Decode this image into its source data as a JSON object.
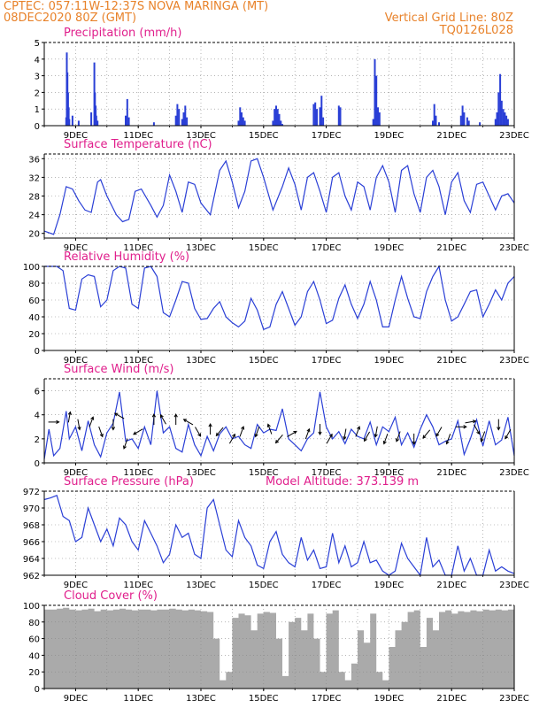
{
  "header": {
    "line1": "CPTEC:   057:11W-12:37S   NOVA MARINGA (MT)",
    "line2_left": "08DEC2020 80Z (GMT)",
    "line2_right": "Vertical Grid Line: 80Z",
    "line3_right": "TQ0126L028"
  },
  "colors": {
    "header": "#e8822a",
    "title": "#e01f8c",
    "line": "#2a3fd6",
    "cloud": "#aaaaaa"
  },
  "chart_data": [
    {
      "type": "bar",
      "title": "Precipitation (mm/h)",
      "ylim": [
        0,
        5
      ],
      "yticks": [
        0,
        1,
        2,
        3,
        4,
        5
      ],
      "xticklabels": [
        "9DEC",
        "11DEC",
        "13DEC",
        "15DEC",
        "17DEC",
        "19DEC",
        "21DEC",
        "23DEC"
      ],
      "xlim_days": [
        8.0,
        23.0
      ],
      "x_days": [
        8.7,
        8.72,
        8.74,
        8.76,
        8.78,
        8.8,
        8.9,
        9.1,
        9.5,
        9.6,
        9.62,
        9.64,
        9.66,
        9.7,
        10.6,
        10.65,
        10.7,
        11.5,
        12.2,
        12.25,
        12.3,
        12.4,
        12.45,
        12.5,
        12.55,
        14.2,
        14.25,
        14.3,
        14.35,
        14.4,
        15.3,
        15.35,
        15.4,
        15.45,
        15.5,
        15.55,
        15.6,
        16.6,
        16.65,
        16.7,
        16.8,
        16.85,
        16.9,
        17.4,
        17.45,
        18.5,
        18.55,
        18.6,
        18.65,
        18.7,
        20.4,
        20.45,
        20.5,
        20.6,
        21.3,
        21.35,
        21.4,
        21.5,
        21.55,
        21.9,
        22.4,
        22.45,
        22.5,
        22.55,
        22.6,
        22.65,
        22.7,
        22.75,
        22.8
      ],
      "values": [
        0.5,
        4.4,
        3.2,
        2.0,
        1.1,
        0.4,
        0.6,
        0.3,
        0.8,
        3.8,
        2.0,
        1.2,
        0.6,
        0.3,
        0.6,
        1.6,
        0.5,
        0.2,
        0.6,
        1.3,
        1.0,
        0.4,
        0.8,
        1.2,
        0.5,
        0.3,
        1.1,
        0.8,
        0.5,
        0.3,
        0.3,
        1.0,
        1.2,
        1.0,
        0.7,
        0.3,
        0.1,
        1.3,
        1.4,
        1.0,
        1.1,
        1.8,
        0.5,
        1.2,
        1.1,
        0.4,
        4.0,
        3.0,
        1.1,
        0.8,
        0.3,
        1.3,
        0.6,
        0.2,
        0.6,
        1.2,
        0.8,
        0.5,
        0.3,
        0.2,
        0.4,
        0.8,
        2.0,
        3.1,
        1.5,
        1.0,
        0.8,
        0.6,
        0.4
      ]
    },
    {
      "type": "line",
      "title": "Surface Temperature (nC)",
      "ylim": [
        19,
        37
      ],
      "yticks": [
        20,
        24,
        28,
        32,
        36
      ],
      "xticklabels": [
        "9DEC",
        "11DEC",
        "13DEC",
        "15DEC",
        "17DEC",
        "19DEC",
        "21DEC",
        "23DEC"
      ],
      "xlim_days": [
        8.0,
        23.0
      ],
      "x_days": [
        8.0,
        8.3,
        8.5,
        8.7,
        8.9,
        9.1,
        9.3,
        9.5,
        9.7,
        9.8,
        10.0,
        10.3,
        10.5,
        10.7,
        10.9,
        11.1,
        11.4,
        11.6,
        11.8,
        12.0,
        12.2,
        12.4,
        12.6,
        12.8,
        13.0,
        13.3,
        13.6,
        13.8,
        14.0,
        14.2,
        14.4,
        14.6,
        14.8,
        15.0,
        15.3,
        15.6,
        15.8,
        16.0,
        16.2,
        16.4,
        16.6,
        16.8,
        17.0,
        17.2,
        17.4,
        17.6,
        17.8,
        18.0,
        18.2,
        18.4,
        18.6,
        18.8,
        19.0,
        19.2,
        19.4,
        19.6,
        19.8,
        20.0,
        20.2,
        20.4,
        20.6,
        20.8,
        21.0,
        21.2,
        21.4,
        21.6,
        21.8,
        22.0,
        22.2,
        22.4,
        22.6,
        22.8,
        23.0
      ],
      "values": [
        20.5,
        19.8,
        24.0,
        30.0,
        29.5,
        27.0,
        25.0,
        24.5,
        31.0,
        31.5,
        28.0,
        24.0,
        22.5,
        23.0,
        29.0,
        29.5,
        26.0,
        23.5,
        26.0,
        32.5,
        29.0,
        24.5,
        31.0,
        30.5,
        26.5,
        24.0,
        33.5,
        35.5,
        31.0,
        25.5,
        29.0,
        35.5,
        36.0,
        32.0,
        25.0,
        30.0,
        34.0,
        30.5,
        25.0,
        32.0,
        33.0,
        29.0,
        24.5,
        32.0,
        33.0,
        28.0,
        25.0,
        31.0,
        30.0,
        25.0,
        32.0,
        34.5,
        31.0,
        24.5,
        33.5,
        34.5,
        28.5,
        24.5,
        32.0,
        33.5,
        30.0,
        24.0,
        31.0,
        33.0,
        27.0,
        24.5,
        30.5,
        31.0,
        28.0,
        25.0,
        28.0,
        28.5,
        26.5
      ]
    },
    {
      "type": "line",
      "title": "Relative Humidity (%)",
      "ylim": [
        0,
        100
      ],
      "yticks": [
        0,
        20,
        40,
        60,
        80,
        100
      ],
      "xticklabels": [
        "9DEC",
        "11DEC",
        "13DEC",
        "15DEC",
        "17DEC",
        "19DEC",
        "21DEC",
        "23DEC"
      ],
      "xlim_days": [
        8.0,
        23.0
      ],
      "x_days": [
        8.0,
        8.2,
        8.4,
        8.6,
        8.8,
        9.0,
        9.2,
        9.4,
        9.6,
        9.8,
        10.0,
        10.2,
        10.4,
        10.6,
        10.8,
        11.0,
        11.2,
        11.4,
        11.6,
        11.8,
        12.0,
        12.2,
        12.4,
        12.6,
        12.8,
        13.0,
        13.2,
        13.4,
        13.6,
        13.8,
        14.0,
        14.2,
        14.4,
        14.6,
        14.8,
        15.0,
        15.2,
        15.4,
        15.6,
        15.8,
        16.0,
        16.2,
        16.4,
        16.6,
        16.8,
        17.0,
        17.2,
        17.4,
        17.6,
        17.8,
        18.0,
        18.2,
        18.4,
        18.6,
        18.8,
        19.0,
        19.2,
        19.4,
        19.6,
        19.8,
        20.0,
        20.2,
        20.4,
        20.6,
        20.8,
        21.0,
        21.2,
        21.4,
        21.6,
        21.8,
        22.0,
        22.2,
        22.4,
        22.6,
        22.8,
        23.0
      ],
      "values": [
        100,
        100,
        100,
        95,
        50,
        48,
        85,
        90,
        88,
        52,
        60,
        95,
        100,
        98,
        55,
        50,
        98,
        100,
        88,
        45,
        40,
        60,
        82,
        80,
        50,
        37,
        38,
        50,
        58,
        40,
        33,
        28,
        35,
        62,
        48,
        25,
        28,
        55,
        70,
        50,
        30,
        40,
        70,
        82,
        60,
        32,
        36,
        62,
        78,
        55,
        38,
        55,
        82,
        60,
        28,
        28,
        60,
        88,
        62,
        40,
        38,
        70,
        88,
        100,
        60,
        35,
        40,
        55,
        70,
        72,
        40,
        55,
        72,
        60,
        80,
        88
      ]
    },
    {
      "type": "line",
      "title": "Surface Wind (m/s)",
      "ylim": [
        0,
        7
      ],
      "yticks": [
        0,
        2,
        4,
        6
      ],
      "xticklabels": [
        "9DEC",
        "11DEC",
        "13DEC",
        "15DEC",
        "17DEC",
        "19DEC",
        "21DEC",
        "23DEC"
      ],
      "xlim_days": [
        8.0,
        23.0
      ],
      "x_days": [
        8.0,
        8.15,
        8.3,
        8.5,
        8.7,
        8.8,
        9.0,
        9.2,
        9.4,
        9.6,
        9.8,
        10.0,
        10.2,
        10.4,
        10.6,
        10.8,
        11.0,
        11.2,
        11.4,
        11.6,
        11.8,
        12.0,
        12.2,
        12.4,
        12.6,
        12.8,
        13.0,
        13.2,
        13.4,
        13.6,
        13.8,
        14.0,
        14.2,
        14.4,
        14.6,
        14.8,
        15.0,
        15.2,
        15.4,
        15.6,
        15.8,
        16.0,
        16.2,
        16.4,
        16.6,
        16.8,
        17.0,
        17.2,
        17.4,
        17.6,
        17.8,
        18.0,
        18.2,
        18.4,
        18.6,
        18.8,
        19.0,
        19.2,
        19.4,
        19.6,
        19.8,
        20.0,
        20.2,
        20.4,
        20.6,
        20.8,
        21.0,
        21.2,
        21.4,
        21.6,
        21.8,
        22.0,
        22.2,
        22.4,
        22.6,
        22.8,
        23.0
      ],
      "values": [
        0.3,
        2.8,
        0.6,
        1.2,
        4.3,
        2.0,
        3.0,
        1.0,
        3.5,
        1.5,
        0.5,
        2.5,
        3.3,
        5.9,
        1.8,
        2.0,
        1.2,
        3.0,
        1.5,
        6.0,
        2.5,
        3.0,
        1.2,
        0.9,
        3.2,
        1.5,
        0.6,
        2.2,
        1.0,
        2.4,
        3.0,
        2.0,
        2.2,
        1.5,
        1.2,
        3.2,
        2.5,
        2.8,
        2.7,
        4.5,
        2.0,
        1.5,
        1.0,
        2.0,
        2.5,
        5.9,
        3.0,
        2.0,
        2.6,
        1.6,
        2.8,
        2.2,
        2.0,
        3.4,
        1.5,
        3.0,
        2.6,
        3.8,
        1.5,
        2.5,
        1.3,
        2.8,
        4.0,
        3.0,
        1.5,
        1.8,
        2.0,
        3.5,
        0.7,
        2.0,
        3.6,
        1.4,
        3.5,
        1.5,
        1.9,
        3.8,
        0.6
      ],
      "vectors": [
        {
          "x": 8.3,
          "y": 3.4,
          "dir": 90
        },
        {
          "x": 8.8,
          "y": 3.8,
          "dir": 10
        },
        {
          "x": 9.1,
          "y": 3.2,
          "dir": 170
        },
        {
          "x": 9.5,
          "y": 3.4,
          "dir": 20
        },
        {
          "x": 9.8,
          "y": 2.6,
          "dir": 160
        },
        {
          "x": 10.2,
          "y": 3.2,
          "dir": 180
        },
        {
          "x": 10.4,
          "y": 3.9,
          "dir": 300
        },
        {
          "x": 10.6,
          "y": 1.6,
          "dir": 200
        },
        {
          "x": 11.0,
          "y": 2.6,
          "dir": 240
        },
        {
          "x": 11.5,
          "y": 3.6,
          "dir": 0
        },
        {
          "x": 11.8,
          "y": 3.6,
          "dir": 330
        },
        {
          "x": 12.2,
          "y": 3.6,
          "dir": 0
        },
        {
          "x": 12.6,
          "y": 3.4,
          "dir": 300
        },
        {
          "x": 12.9,
          "y": 2.6,
          "dir": 150
        },
        {
          "x": 13.3,
          "y": 2.8,
          "dir": 0
        },
        {
          "x": 13.6,
          "y": 2.6,
          "dir": 220
        },
        {
          "x": 14.0,
          "y": 2.0,
          "dir": 30
        },
        {
          "x": 14.3,
          "y": 2.6,
          "dir": 20
        },
        {
          "x": 14.8,
          "y": 2.6,
          "dir": 200
        },
        {
          "x": 15.2,
          "y": 2.8,
          "dir": 340
        },
        {
          "x": 15.5,
          "y": 2.0,
          "dir": 220
        },
        {
          "x": 15.9,
          "y": 2.4,
          "dir": 60
        },
        {
          "x": 16.4,
          "y": 2.4,
          "dir": 20
        },
        {
          "x": 16.8,
          "y": 2.8,
          "dir": 180
        },
        {
          "x": 17.1,
          "y": 2.0,
          "dir": 30
        },
        {
          "x": 17.6,
          "y": 2.4,
          "dir": 190
        },
        {
          "x": 18.0,
          "y": 2.6,
          "dir": 20
        },
        {
          "x": 18.3,
          "y": 2.2,
          "dir": 210
        },
        {
          "x": 18.6,
          "y": 2.6,
          "dir": 190
        },
        {
          "x": 18.9,
          "y": 2.0,
          "dir": 200
        },
        {
          "x": 19.3,
          "y": 2.2,
          "dir": 200
        },
        {
          "x": 19.8,
          "y": 2.0,
          "dir": 180
        },
        {
          "x": 20.2,
          "y": 2.4,
          "dir": 220
        },
        {
          "x": 20.6,
          "y": 2.6,
          "dir": 210
        },
        {
          "x": 20.9,
          "y": 2.0,
          "dir": 200
        },
        {
          "x": 21.3,
          "y": 3.0,
          "dir": 90
        },
        {
          "x": 21.6,
          "y": 3.4,
          "dir": 80
        },
        {
          "x": 21.8,
          "y": 2.8,
          "dir": 150
        },
        {
          "x": 22.0,
          "y": 2.2,
          "dir": 200
        },
        {
          "x": 22.5,
          "y": 3.2,
          "dir": 180
        },
        {
          "x": 22.8,
          "y": 2.4,
          "dir": 210
        }
      ]
    },
    {
      "type": "line",
      "title": "Surface Pressure (hPa)",
      "annotation": "Model Altitude: 373.139 m",
      "ylim": [
        962,
        972
      ],
      "yticks": [
        962,
        964,
        966,
        968,
        970,
        972
      ],
      "xticklabels": [
        "9DEC",
        "11DEC",
        "13DEC",
        "15DEC",
        "17DEC",
        "19DEC",
        "21DEC",
        "23DEC"
      ],
      "xlim_days": [
        8.0,
        23.0
      ],
      "x_days": [
        8.0,
        8.2,
        8.4,
        8.6,
        8.8,
        9.0,
        9.2,
        9.4,
        9.6,
        9.8,
        10.0,
        10.2,
        10.4,
        10.6,
        10.8,
        11.0,
        11.2,
        11.4,
        11.6,
        11.8,
        12.0,
        12.2,
        12.4,
        12.6,
        12.8,
        13.0,
        13.2,
        13.4,
        13.6,
        13.8,
        14.0,
        14.2,
        14.4,
        14.6,
        14.8,
        15.0,
        15.2,
        15.4,
        15.6,
        15.8,
        16.0,
        16.2,
        16.4,
        16.6,
        16.8,
        17.0,
        17.2,
        17.4,
        17.6,
        17.8,
        18.0,
        18.2,
        18.4,
        18.6,
        18.8,
        19.0,
        19.2,
        19.4,
        19.6,
        19.8,
        20.0,
        20.2,
        20.4,
        20.6,
        20.8,
        21.0,
        21.2,
        21.4,
        21.6,
        21.8,
        22.0,
        22.2,
        22.4,
        22.6,
        22.8,
        23.0
      ],
      "values": [
        971.0,
        971.2,
        971.5,
        969.0,
        968.5,
        966.0,
        966.5,
        970.0,
        968.0,
        966.0,
        967.5,
        965.5,
        968.8,
        968.0,
        966.0,
        965.0,
        968.5,
        967.0,
        965.5,
        963.5,
        964.5,
        968.0,
        966.5,
        967.0,
        964.5,
        964.0,
        970.0,
        971.0,
        968.0,
        965.0,
        964.2,
        968.5,
        966.5,
        965.5,
        963.2,
        962.8,
        966.0,
        967.2,
        964.5,
        963.5,
        963.0,
        966.5,
        963.8,
        965.0,
        962.8,
        963.0,
        967.0,
        963.5,
        965.5,
        963.0,
        963.5,
        966.0,
        963.5,
        963.8,
        962.5,
        962.0,
        962.5,
        965.8,
        964.0,
        963.0,
        962.0,
        966.5,
        963.0,
        963.8,
        962.0,
        962.0,
        965.5,
        962.5,
        964.0,
        962.0,
        962.0,
        965.0,
        962.5,
        963.0,
        962.5,
        962.2
      ]
    },
    {
      "type": "area",
      "title": "Cloud Cover (%)",
      "ylim": [
        0,
        100
      ],
      "yticks": [
        0,
        20,
        40,
        60,
        80,
        100
      ],
      "xticklabels": [
        "9DEC",
        "11DEC",
        "13DEC",
        "15DEC",
        "17DEC",
        "19DEC",
        "21DEC",
        "23DEC"
      ],
      "xlim_days": [
        8.0,
        23.0
      ],
      "x_days": [
        8.0,
        8.2,
        8.4,
        8.6,
        8.8,
        9.0,
        9.2,
        9.4,
        9.6,
        9.8,
        10.0,
        10.2,
        10.4,
        10.6,
        10.8,
        11.0,
        11.2,
        11.4,
        11.6,
        11.8,
        12.0,
        12.2,
        12.4,
        12.6,
        12.8,
        13.0,
        13.2,
        13.4,
        13.6,
        13.8,
        14.0,
        14.2,
        14.4,
        14.6,
        14.8,
        15.0,
        15.2,
        15.4,
        15.6,
        15.8,
        16.0,
        16.2,
        16.4,
        16.6,
        16.8,
        17.0,
        17.2,
        17.4,
        17.6,
        17.8,
        18.0,
        18.2,
        18.4,
        18.6,
        18.8,
        19.0,
        19.2,
        19.4,
        19.6,
        19.8,
        20.0,
        20.2,
        20.4,
        20.6,
        20.8,
        21.0,
        21.2,
        21.4,
        21.6,
        21.8,
        22.0,
        22.2,
        22.4,
        22.6,
        22.8,
        23.0
      ],
      "values": [
        95,
        95,
        96,
        97,
        95,
        94,
        95,
        96,
        93,
        95,
        94,
        95,
        96,
        95,
        94,
        95,
        95,
        94,
        95,
        95,
        96,
        95,
        94,
        95,
        94,
        93,
        92,
        60,
        10,
        20,
        85,
        90,
        88,
        70,
        90,
        92,
        91,
        60,
        15,
        80,
        85,
        70,
        90,
        60,
        20,
        90,
        94,
        20,
        10,
        30,
        70,
        55,
        90,
        20,
        10,
        50,
        70,
        80,
        92,
        94,
        50,
        85,
        70,
        92,
        94,
        90,
        93,
        92,
        94,
        93,
        95,
        94,
        95,
        94,
        95,
        95
      ]
    }
  ]
}
